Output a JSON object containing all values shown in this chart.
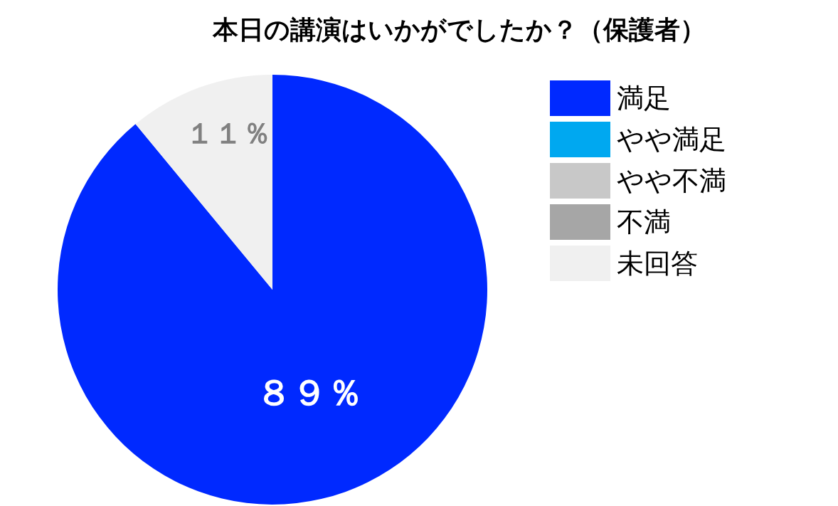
{
  "chart_data": {
    "type": "pie",
    "title": "本日の講演はいかがでしたか？（保護者）",
    "categories": [
      "満足",
      "やや満足",
      "やや不満",
      "不満",
      "未回答"
    ],
    "values": [
      89,
      0,
      0,
      0,
      11
    ],
    "colors": [
      "#0029ff",
      "#00a8f0",
      "#c8c8c8",
      "#a6a6a6",
      "#f0f0f0"
    ],
    "value_labels": [
      "８９％",
      null,
      null,
      null,
      "１１％"
    ],
    "legend": "right"
  }
}
